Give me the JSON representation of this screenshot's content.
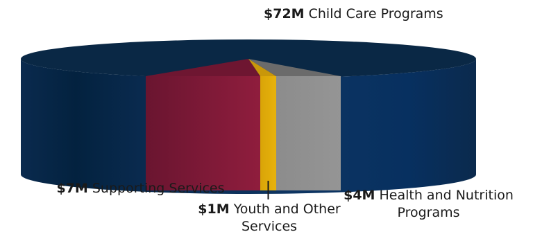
{
  "chart_data": {
    "type": "pie",
    "style": "3d",
    "unit": "$M",
    "legend": "none",
    "slices": [
      {
        "value_label": "$72M",
        "name": "Child Care Programs",
        "value": 72,
        "color": "#0b2b4f"
      },
      {
        "value_label": "$7M",
        "name": "Supporting Services",
        "value": 7,
        "color": "#7a1a36"
      },
      {
        "value_label": "$1M",
        "name": "Youth and Other Services",
        "value": 1,
        "color": "#e2ad0a"
      },
      {
        "value_label": "$4M",
        "name": "Health and Nutrition Programs",
        "value": 4,
        "color": "#8a8a8a"
      }
    ]
  }
}
